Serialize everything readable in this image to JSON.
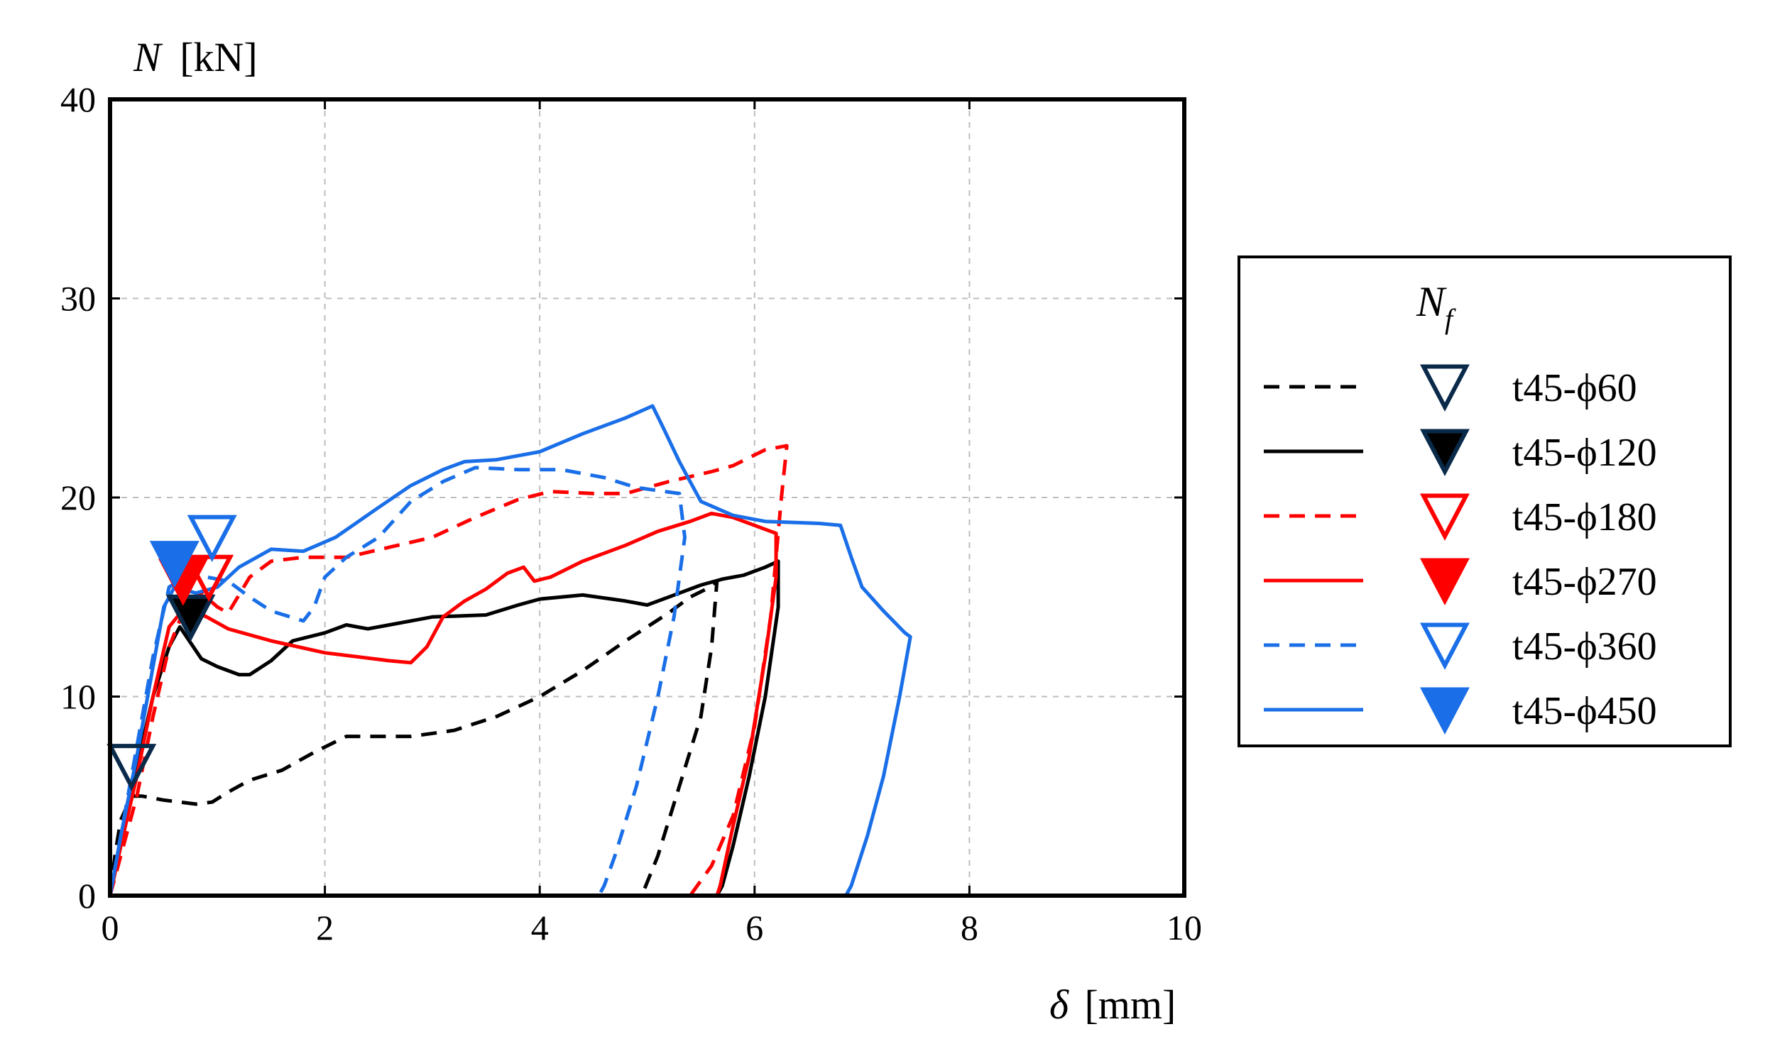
{
  "chart_data": {
    "type": "line",
    "title": "",
    "xlabel": "δ",
    "xunit": "[mm]",
    "ylabel": "N",
    "yunit": "[kN]",
    "xlim": [
      0,
      10
    ],
    "ylim": [
      0,
      40
    ],
    "xticks": [
      0,
      2,
      4,
      6,
      8,
      10
    ],
    "yticks": [
      0,
      10,
      20,
      30,
      40
    ],
    "xtick_labels": [
      "0",
      "2",
      "4",
      "6",
      "8",
      "10"
    ],
    "ytick_labels": [
      "0",
      "10",
      "20",
      "30",
      "40"
    ],
    "grid": true,
    "legend": {
      "title": "N",
      "title_subscript": "f",
      "placement": "right"
    },
    "series": [
      {
        "name": "t45-ϕ60",
        "color": "#000000",
        "line": "dashed",
        "marker": "open-triangle-down",
        "marker_color": "#0a2a4a",
        "Nf_point": [
          0.2,
          6.5
        ],
        "points": [
          [
            0,
            0
          ],
          [
            0.05,
            2.2
          ],
          [
            0.1,
            3.8
          ],
          [
            0.2,
            5.0
          ],
          [
            0.3,
            5.0
          ],
          [
            0.5,
            4.8
          ],
          [
            0.8,
            4.6
          ],
          [
            0.95,
            4.7
          ],
          [
            1.1,
            5.2
          ],
          [
            1.3,
            5.8
          ],
          [
            1.6,
            6.3
          ],
          [
            1.9,
            7.2
          ],
          [
            2.2,
            8.0
          ],
          [
            2.5,
            8.0
          ],
          [
            2.8,
            8.0
          ],
          [
            3.2,
            8.3
          ],
          [
            3.6,
            9.0
          ],
          [
            4.0,
            10.0
          ],
          [
            4.4,
            11.3
          ],
          [
            4.8,
            12.8
          ],
          [
            5.2,
            14.2
          ],
          [
            5.4,
            15.0
          ],
          [
            5.55,
            15.4
          ],
          [
            5.65,
            15.8
          ],
          [
            5.6,
            12.5
          ],
          [
            5.5,
            9.0
          ],
          [
            5.3,
            5.5
          ],
          [
            5.1,
            2.0
          ],
          [
            4.95,
            0.0
          ]
        ]
      },
      {
        "name": "t45-ϕ120",
        "color": "#000000",
        "line": "solid",
        "marker": "filled-triangle-down",
        "marker_color": "#000000",
        "Nf_point": [
          0.75,
          14.0
        ],
        "points": [
          [
            0,
            0
          ],
          [
            0.1,
            2.5
          ],
          [
            0.25,
            6.5
          ],
          [
            0.4,
            10.0
          ],
          [
            0.55,
            12.5
          ],
          [
            0.65,
            13.5
          ],
          [
            0.75,
            12.7
          ],
          [
            0.85,
            11.9
          ],
          [
            1.0,
            11.5
          ],
          [
            1.2,
            11.1
          ],
          [
            1.3,
            11.1
          ],
          [
            1.5,
            11.8
          ],
          [
            1.7,
            12.8
          ],
          [
            2.0,
            13.2
          ],
          [
            2.2,
            13.6
          ],
          [
            2.4,
            13.4
          ],
          [
            2.6,
            13.6
          ],
          [
            2.8,
            13.8
          ],
          [
            3.0,
            14.0
          ],
          [
            3.5,
            14.1
          ],
          [
            3.8,
            14.6
          ],
          [
            4.0,
            14.9
          ],
          [
            4.4,
            15.1
          ],
          [
            4.8,
            14.8
          ],
          [
            5.0,
            14.6
          ],
          [
            5.2,
            15.0
          ],
          [
            5.5,
            15.6
          ],
          [
            5.7,
            15.9
          ],
          [
            5.9,
            16.1
          ],
          [
            6.1,
            16.5
          ],
          [
            6.22,
            16.8
          ],
          [
            6.22,
            14.5
          ],
          [
            6.1,
            10.0
          ],
          [
            5.95,
            6.0
          ],
          [
            5.8,
            2.5
          ],
          [
            5.7,
            0.5
          ],
          [
            5.65,
            0.0
          ]
        ]
      },
      {
        "name": "t45-ϕ180",
        "color": "#ff0000",
        "line": "dashed",
        "marker": "open-triangle-down",
        "marker_color": "#ff0000",
        "Nf_point": [
          0.92,
          16.0
        ],
        "points": [
          [
            0,
            0
          ],
          [
            0.1,
            2.0
          ],
          [
            0.25,
            5.0
          ],
          [
            0.4,
            9.0
          ],
          [
            0.55,
            12.5
          ],
          [
            0.7,
            14.5
          ],
          [
            0.85,
            15.2
          ],
          [
            1.0,
            14.5
          ],
          [
            1.1,
            14.2
          ],
          [
            1.3,
            16.0
          ],
          [
            1.5,
            16.8
          ],
          [
            1.8,
            17.0
          ],
          [
            2.2,
            17.0
          ],
          [
            2.6,
            17.5
          ],
          [
            3.0,
            18.0
          ],
          [
            3.4,
            19.0
          ],
          [
            3.8,
            19.9
          ],
          [
            4.1,
            20.3
          ],
          [
            4.5,
            20.2
          ],
          [
            4.8,
            20.2
          ],
          [
            5.2,
            20.8
          ],
          [
            5.6,
            21.3
          ],
          [
            5.8,
            21.6
          ],
          [
            6.1,
            22.4
          ],
          [
            6.3,
            22.6
          ],
          [
            6.25,
            20.0
          ],
          [
            6.15,
            14.0
          ],
          [
            6.0,
            8.5
          ],
          [
            5.8,
            4.0
          ],
          [
            5.6,
            1.5
          ],
          [
            5.4,
            0.0
          ]
        ]
      },
      {
        "name": "t45-ϕ270",
        "color": "#ff0000",
        "line": "solid",
        "marker": "filled-triangle-down",
        "marker_color": "#ff0000",
        "Nf_point": [
          0.68,
          15.8
        ],
        "points": [
          [
            0,
            0
          ],
          [
            0.1,
            2.5
          ],
          [
            0.25,
            6.0
          ],
          [
            0.4,
            10.0
          ],
          [
            0.55,
            13.5
          ],
          [
            0.7,
            14.5
          ],
          [
            0.9,
            14.0
          ],
          [
            1.1,
            13.4
          ],
          [
            1.5,
            12.8
          ],
          [
            2.0,
            12.2
          ],
          [
            2.3,
            12.0
          ],
          [
            2.6,
            11.8
          ],
          [
            2.8,
            11.7
          ],
          [
            2.95,
            12.5
          ],
          [
            3.1,
            14.0
          ],
          [
            3.3,
            14.8
          ],
          [
            3.5,
            15.4
          ],
          [
            3.7,
            16.2
          ],
          [
            3.85,
            16.5
          ],
          [
            3.95,
            15.8
          ],
          [
            4.1,
            16.0
          ],
          [
            4.4,
            16.8
          ],
          [
            4.8,
            17.6
          ],
          [
            5.1,
            18.3
          ],
          [
            5.4,
            18.8
          ],
          [
            5.6,
            19.2
          ],
          [
            5.8,
            19.0
          ],
          [
            6.0,
            18.6
          ],
          [
            6.2,
            18.2
          ],
          [
            6.2,
            16.0
          ],
          [
            6.1,
            12.0
          ],
          [
            5.95,
            7.0
          ],
          [
            5.8,
            3.5
          ],
          [
            5.68,
            0.5
          ],
          [
            5.65,
            0.0
          ]
        ]
      },
      {
        "name": "t45-ϕ360",
        "color": "#1a6fe8",
        "line": "dashed",
        "marker": "open-triangle-down",
        "marker_color": "#1a6fe8",
        "Nf_point": [
          0.95,
          18.0
        ],
        "points": [
          [
            0,
            0
          ],
          [
            0.1,
            3.0
          ],
          [
            0.25,
            7.5
          ],
          [
            0.4,
            12.0
          ],
          [
            0.55,
            15.5
          ],
          [
            0.75,
            16.2
          ],
          [
            0.9,
            16.0
          ],
          [
            1.1,
            15.8
          ],
          [
            1.3,
            15.0
          ],
          [
            1.5,
            14.3
          ],
          [
            1.8,
            13.8
          ],
          [
            1.9,
            14.5
          ],
          [
            2.0,
            16.0
          ],
          [
            2.2,
            17.0
          ],
          [
            2.5,
            18.0
          ],
          [
            2.8,
            19.8
          ],
          [
            3.1,
            20.8
          ],
          [
            3.4,
            21.5
          ],
          [
            3.8,
            21.4
          ],
          [
            4.2,
            21.4
          ],
          [
            4.6,
            21.0
          ],
          [
            4.9,
            20.5
          ],
          [
            5.3,
            20.2
          ],
          [
            5.35,
            18.0
          ],
          [
            5.25,
            14.0
          ],
          [
            5.1,
            10.0
          ],
          [
            4.9,
            5.5
          ],
          [
            4.7,
            2.0
          ],
          [
            4.6,
            0.5
          ],
          [
            4.55,
            0.0
          ]
        ]
      },
      {
        "name": "t45-ϕ450",
        "color": "#1a6fe8",
        "line": "solid",
        "marker": "filled-triangle-down",
        "marker_color": "#1a6fe8",
        "Nf_point": [
          0.6,
          16.7
        ],
        "points": [
          [
            0,
            0
          ],
          [
            0.1,
            3.0
          ],
          [
            0.25,
            7.0
          ],
          [
            0.4,
            11.5
          ],
          [
            0.5,
            14.5
          ],
          [
            0.6,
            15.5
          ],
          [
            0.8,
            15.2
          ],
          [
            1.0,
            15.5
          ],
          [
            1.2,
            16.5
          ],
          [
            1.5,
            17.4
          ],
          [
            1.8,
            17.3
          ],
          [
            2.1,
            18.0
          ],
          [
            2.5,
            19.5
          ],
          [
            2.8,
            20.6
          ],
          [
            3.1,
            21.4
          ],
          [
            3.3,
            21.8
          ],
          [
            3.6,
            21.9
          ],
          [
            4.0,
            22.3
          ],
          [
            4.4,
            23.2
          ],
          [
            4.8,
            24.0
          ],
          [
            5.05,
            24.6
          ],
          [
            5.15,
            23.5
          ],
          [
            5.3,
            21.8
          ],
          [
            5.4,
            20.8
          ],
          [
            5.5,
            19.8
          ],
          [
            5.8,
            19.1
          ],
          [
            6.1,
            18.8
          ],
          [
            6.6,
            18.7
          ],
          [
            6.8,
            18.6
          ],
          [
            6.9,
            17.0
          ],
          [
            7.0,
            15.5
          ],
          [
            7.2,
            14.3
          ],
          [
            7.4,
            13.2
          ],
          [
            7.45,
            13.0
          ],
          [
            7.35,
            10.0
          ],
          [
            7.2,
            6.0
          ],
          [
            7.05,
            3.0
          ],
          [
            6.9,
            0.5
          ],
          [
            6.85,
            0.0
          ]
        ]
      }
    ]
  }
}
